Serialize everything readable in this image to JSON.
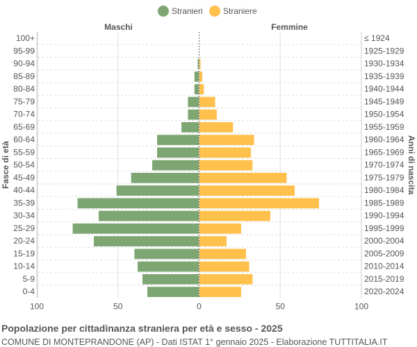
{
  "chart_data": {
    "type": "bar",
    "orientation": "horizontal-pyramid",
    "title": "Popolazione per cittadinanza straniera per età e sesso - 2025",
    "subtitle": "COMUNE DI MONTEPRANDONE (AP) - Dati ISTAT 1° gennaio 2025 - Elaborazione TUTTITALIA.IT",
    "left_header": "Maschi",
    "right_header": "Femmine",
    "ylabel_left": "Fasce di età",
    "ylabel_right": "Anni di nascita",
    "xlim": [
      -100,
      100
    ],
    "xticks": [
      "100",
      "50",
      "0",
      "50",
      "100"
    ],
    "grid": true,
    "legend_position": "top",
    "categories": [
      "100+",
      "95-99",
      "90-94",
      "85-89",
      "80-84",
      "75-79",
      "70-74",
      "65-69",
      "60-64",
      "55-59",
      "50-54",
      "45-49",
      "40-44",
      "35-39",
      "30-34",
      "25-29",
      "20-24",
      "15-19",
      "10-14",
      "5-9",
      "0-4"
    ],
    "birth_years": [
      "≤ 1924",
      "1925-1929",
      "1930-1934",
      "1935-1939",
      "1940-1944",
      "1945-1949",
      "1950-1954",
      "1955-1959",
      "1960-1964",
      "1965-1969",
      "1970-1974",
      "1975-1979",
      "1980-1984",
      "1985-1989",
      "1990-1994",
      "1995-1999",
      "2000-2004",
      "2005-2009",
      "2010-2014",
      "2015-2019",
      "2020-2024"
    ],
    "series": [
      {
        "name": "Stranieri",
        "color": "#7da673",
        "values": [
          0,
          0,
          1,
          3,
          3,
          7,
          7,
          11,
          26,
          26,
          29,
          42,
          51,
          75,
          62,
          78,
          65,
          40,
          38,
          35,
          32
        ]
      },
      {
        "name": "Straniere",
        "color": "#ffc04c",
        "values": [
          0,
          0,
          1,
          2,
          3,
          10,
          11,
          21,
          34,
          32,
          33,
          54,
          59,
          74,
          44,
          26,
          17,
          29,
          31,
          33,
          26
        ]
      }
    ]
  }
}
